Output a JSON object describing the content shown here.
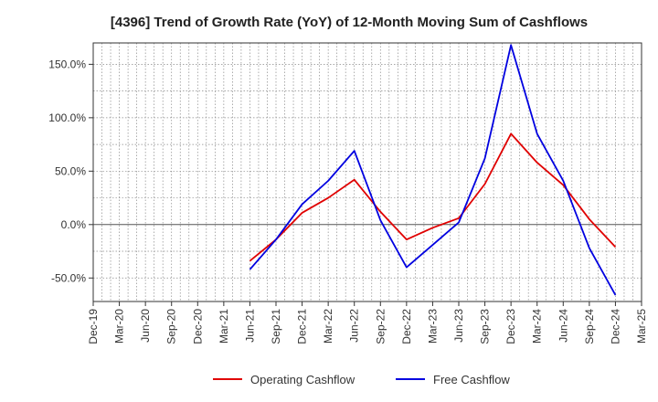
{
  "chart_data": {
    "type": "line",
    "title": "[4396]  Trend of Growth Rate (YoY) of 12-Month Moving Sum of Cashflows",
    "xlabel": "",
    "ylabel": "",
    "ylim": [
      -72,
      170
    ],
    "y_ticks": [
      -50,
      0,
      50,
      100,
      150
    ],
    "y_tick_labels": [
      "-50.0%",
      "0.0%",
      "50.0%",
      "100.0%",
      "150.0%"
    ],
    "x_tick_labels": [
      "Dec-19",
      "Mar-20",
      "Jun-20",
      "Sep-20",
      "Dec-20",
      "Mar-21",
      "Jun-21",
      "Sep-21",
      "Dec-21",
      "Mar-22",
      "Jun-22",
      "Sep-22",
      "Dec-22",
      "Mar-23",
      "Jun-23",
      "Sep-23",
      "Dec-23",
      "Mar-24",
      "Jun-24",
      "Sep-24",
      "Dec-24",
      "Mar-25"
    ],
    "grid": true,
    "legend_position": "bottom",
    "series": [
      {
        "name": "Operating Cashflow",
        "color": "#e00000",
        "x": [
          "Jun-21",
          "Sep-21",
          "Dec-21",
          "Mar-22",
          "Jun-22",
          "Sep-22",
          "Dec-22",
          "Mar-23",
          "Jun-23",
          "Sep-23",
          "Dec-23",
          "Mar-24",
          "Jun-24",
          "Sep-24",
          "Dec-24"
        ],
        "values": [
          -34,
          -14,
          11,
          25,
          42,
          12,
          -14,
          -3,
          6,
          38,
          85,
          58,
          37,
          5,
          -21
        ]
      },
      {
        "name": "Free Cashflow",
        "color": "#0000e0",
        "x": [
          "Jun-21",
          "Sep-21",
          "Dec-21",
          "Mar-22",
          "Jun-22",
          "Sep-22",
          "Dec-22",
          "Mar-23",
          "Jun-23",
          "Sep-23",
          "Dec-23",
          "Mar-24",
          "Jun-24",
          "Sep-24",
          "Dec-24"
        ],
        "values": [
          -42,
          -14,
          19,
          41,
          69,
          4,
          -40,
          -19,
          2,
          62,
          168,
          85,
          41,
          -22,
          -66
        ]
      }
    ]
  }
}
